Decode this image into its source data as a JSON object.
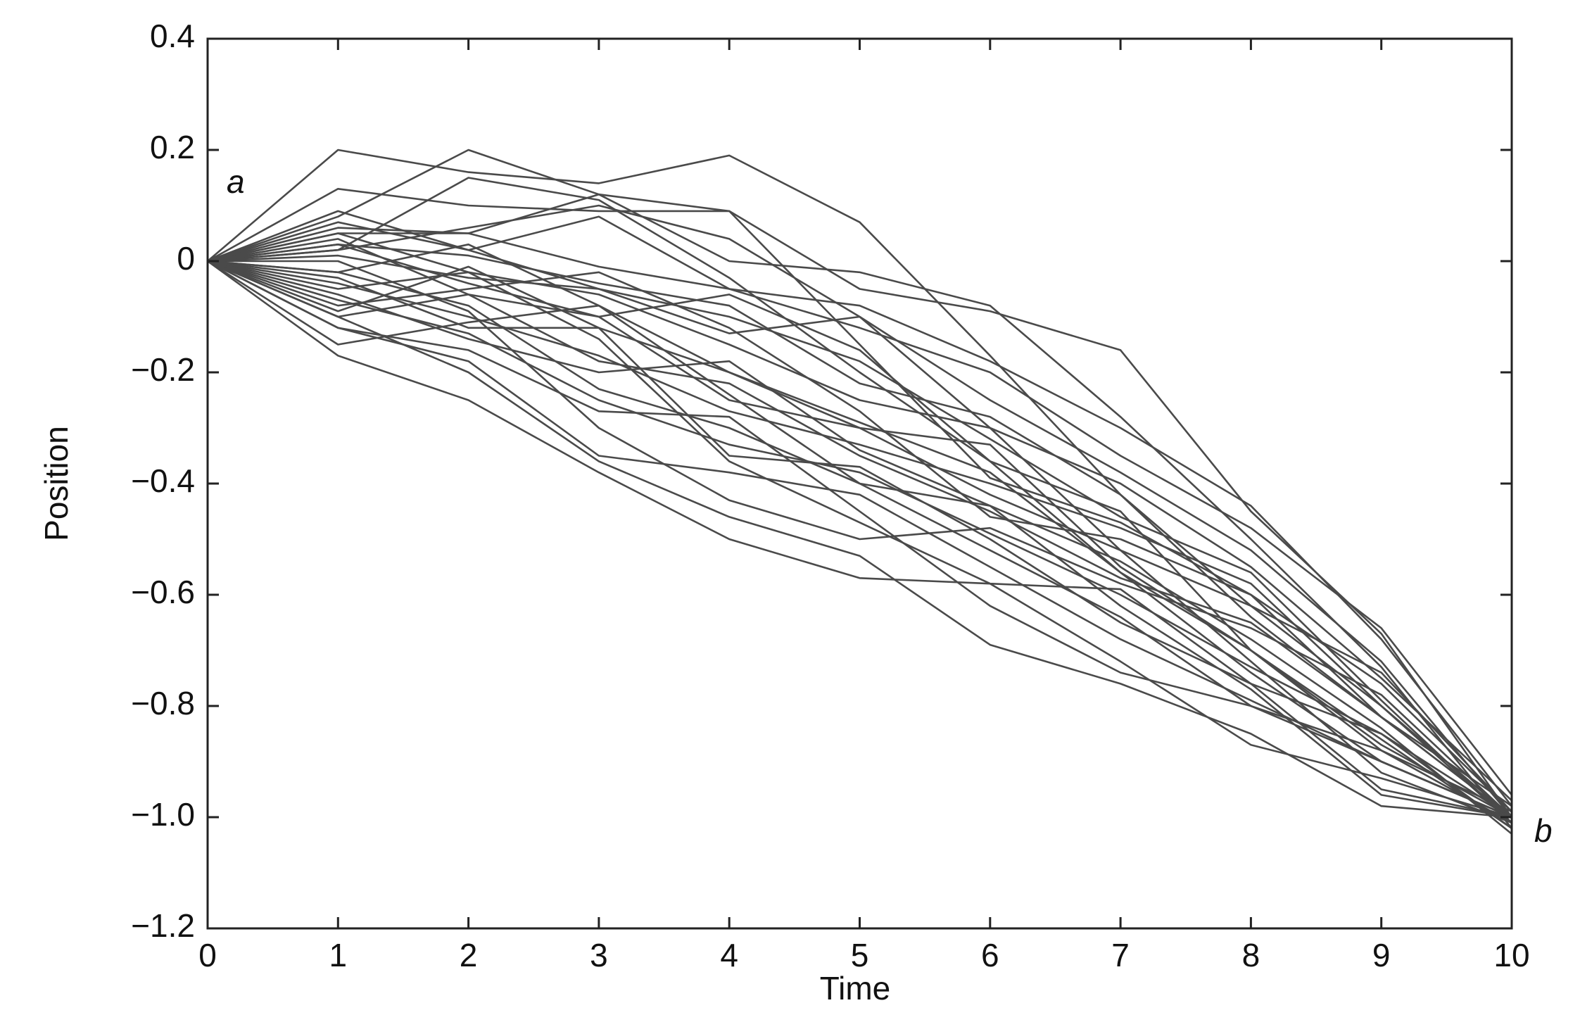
{
  "chart_data": {
    "type": "line",
    "x_label": "Time",
    "y_label": "Position",
    "annotations": [
      "a",
      "b"
    ],
    "x": [
      0,
      1,
      2,
      3,
      4,
      5,
      6,
      7,
      8,
      9,
      10
    ],
    "xlim": [
      0,
      10
    ],
    "xticks": [
      0,
      1,
      2,
      3,
      4,
      5,
      6,
      7,
      8,
      9,
      10
    ],
    "ylim": [
      -1.2,
      0.4
    ],
    "yticks": [
      {
        "value": -1.2,
        "label": "−1.2"
      },
      {
        "value": -1.0,
        "label": "−1.0"
      },
      {
        "value": -0.8,
        "label": "−0.8"
      },
      {
        "value": -0.6,
        "label": "−0.6"
      },
      {
        "value": -0.4,
        "label": "−0.4"
      },
      {
        "value": -0.2,
        "label": "−0.2"
      },
      0,
      0.2,
      0.4
    ],
    "color": "#4a4a4a",
    "series": [
      {
        "values": [
          0,
          0.2,
          0.16,
          0.14,
          0.19,
          0.07,
          -0.17,
          -0.42,
          -0.62,
          -0.8,
          -1.0
        ]
      },
      {
        "values": [
          0,
          0.08,
          0.2,
          0.12,
          0.09,
          -0.05,
          -0.09,
          -0.16,
          -0.45,
          -0.67,
          -1.0
        ]
      },
      {
        "values": [
          0,
          -0.17,
          -0.25,
          -0.38,
          -0.5,
          -0.57,
          -0.58,
          -0.72,
          -0.87,
          -0.93,
          -1.0
        ]
      },
      {
        "values": [
          0,
          -0.1,
          -0.2,
          -0.36,
          -0.46,
          -0.53,
          -0.69,
          -0.76,
          -0.85,
          -0.98,
          -1.0
        ]
      },
      {
        "values": [
          0,
          0.05,
          0.05,
          0.12,
          0.0,
          -0.02,
          -0.08,
          -0.28,
          -0.5,
          -0.73,
          -1.02
        ]
      },
      {
        "values": [
          0,
          -0.03,
          -0.12,
          -0.12,
          -0.2,
          -0.3,
          -0.33,
          -0.55,
          -0.7,
          -0.87,
          -1.0
        ]
      },
      {
        "values": [
          0,
          0.13,
          0.1,
          0.09,
          0.09,
          -0.15,
          -0.39,
          -0.47,
          -0.6,
          -0.82,
          -0.98
        ]
      },
      {
        "values": [
          0,
          -0.05,
          -0.02,
          -0.06,
          -0.15,
          -0.25,
          -0.3,
          -0.52,
          -0.72,
          -0.92,
          -1.01
        ]
      },
      {
        "values": [
          0,
          0.02,
          0.15,
          0.11,
          -0.03,
          -0.2,
          -0.36,
          -0.56,
          -0.7,
          -0.88,
          -0.99
        ]
      },
      {
        "values": [
          0,
          -0.12,
          -0.16,
          -0.27,
          -0.28,
          -0.45,
          -0.62,
          -0.74,
          -0.8,
          -0.9,
          -1.0
        ]
      },
      {
        "values": [
          0,
          -0.09,
          -0.01,
          -0.12,
          -0.35,
          -0.37,
          -0.5,
          -0.65,
          -0.76,
          -0.85,
          -1.02
        ]
      },
      {
        "values": [
          0,
          0.05,
          -0.02,
          -0.14,
          -0.36,
          -0.47,
          -0.58,
          -0.59,
          -0.76,
          -0.95,
          -1.0
        ]
      },
      {
        "values": [
          0,
          0.09,
          0.02,
          -0.05,
          -0.13,
          -0.1,
          -0.3,
          -0.4,
          -0.55,
          -0.75,
          -0.97
        ]
      },
      {
        "values": [
          0,
          -0.02,
          -0.08,
          -0.23,
          -0.3,
          -0.4,
          -0.44,
          -0.54,
          -0.68,
          -0.84,
          -1.03
        ]
      },
      {
        "values": [
          0,
          0.0,
          -0.09,
          -0.3,
          -0.43,
          -0.5,
          -0.48,
          -0.58,
          -0.66,
          -0.78,
          -1.0
        ]
      },
      {
        "values": [
          0,
          -0.06,
          -0.14,
          -0.2,
          -0.18,
          -0.34,
          -0.44,
          -0.62,
          -0.77,
          -0.96,
          -1.0
        ]
      },
      {
        "values": [
          0,
          0.06,
          0.05,
          -0.01,
          -0.05,
          -0.08,
          -0.18,
          -0.3,
          -0.44,
          -0.68,
          -0.98
        ]
      },
      {
        "values": [
          0,
          -0.15,
          -0.11,
          -0.08,
          -0.24,
          -0.4,
          -0.52,
          -0.64,
          -0.8,
          -0.88,
          -1.01
        ]
      },
      {
        "values": [
          0,
          0.03,
          0.01,
          -0.04,
          -0.08,
          -0.22,
          -0.28,
          -0.42,
          -0.64,
          -0.82,
          -1.0
        ]
      },
      {
        "values": [
          0,
          -0.08,
          -0.05,
          -0.02,
          -0.12,
          -0.27,
          -0.46,
          -0.5,
          -0.6,
          -0.76,
          -0.99
        ]
      },
      {
        "values": [
          0,
          0.02,
          0.06,
          0.1,
          0.04,
          -0.1,
          -0.25,
          -0.38,
          -0.52,
          -0.72,
          -1.0
        ]
      },
      {
        "values": [
          0,
          -0.04,
          -0.1,
          -0.17,
          -0.27,
          -0.33,
          -0.4,
          -0.48,
          -0.58,
          -0.8,
          -1.01
        ]
      },
      {
        "values": [
          0,
          -0.12,
          -0.18,
          -0.35,
          -0.38,
          -0.42,
          -0.55,
          -0.68,
          -0.79,
          -0.9,
          -1.0
        ]
      },
      {
        "values": [
          0,
          0.04,
          -0.06,
          -0.1,
          -0.06,
          -0.16,
          -0.36,
          -0.45,
          -0.7,
          -0.86,
          -1.02
        ]
      },
      {
        "values": [
          0,
          -0.02,
          0.03,
          -0.08,
          -0.2,
          -0.29,
          -0.38,
          -0.56,
          -0.74,
          -0.9,
          -1.0
        ]
      },
      {
        "values": [
          0,
          0.07,
          0.02,
          0.08,
          -0.05,
          -0.12,
          -0.2,
          -0.35,
          -0.48,
          -0.66,
          -0.96
        ]
      },
      {
        "values": [
          0,
          -0.07,
          -0.13,
          -0.25,
          -0.33,
          -0.38,
          -0.49,
          -0.6,
          -0.73,
          -0.85,
          -1.0
        ]
      },
      {
        "values": [
          0,
          0.03,
          -0.04,
          -0.1,
          -0.25,
          -0.3,
          -0.42,
          -0.52,
          -0.62,
          -0.74,
          -0.99
        ]
      },
      {
        "values": [
          0,
          -0.1,
          -0.06,
          -0.18,
          -0.22,
          -0.35,
          -0.45,
          -0.57,
          -0.65,
          -0.82,
          -1.0
        ]
      },
      {
        "values": [
          0,
          0.01,
          -0.03,
          -0.05,
          -0.1,
          -0.18,
          -0.32,
          -0.46,
          -0.56,
          -0.79,
          -1.01
        ]
      }
    ]
  }
}
